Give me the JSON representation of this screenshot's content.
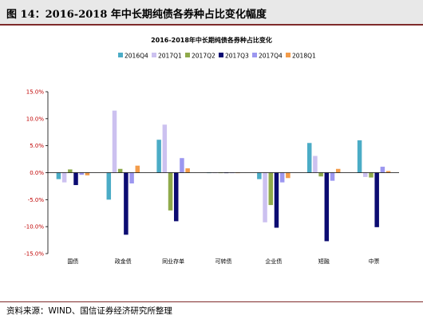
{
  "figure": {
    "title": "图 14：2016-2018 年中长期纯债各券种占比变化幅度",
    "source": "资料来源：WIND、国信证券经济研究所整理"
  },
  "chart_data": {
    "type": "bar",
    "title": "2016-2018年中长期纯债各券种占比变化",
    "xlabel": "",
    "ylabel": "",
    "categories": [
      "国债",
      "政金债",
      "同业存单",
      "可转债",
      "企业债",
      "短融",
      "中票"
    ],
    "ylim": [
      -15,
      15
    ],
    "yticks": [
      15,
      10,
      5,
      0,
      -5,
      -10,
      -15
    ],
    "ytick_labels": [
      "15.0%",
      "10.0%",
      "5.0%",
      "0.0%",
      "-5.0%",
      "-10.0%",
      "-15.0%"
    ],
    "grid": false,
    "legend_position": "top",
    "series": [
      {
        "name": "2016Q4",
        "color": "#4bacc6",
        "values": [
          -1.2,
          -5.0,
          6.1,
          0.0,
          -1.2,
          5.5,
          6.0
        ]
      },
      {
        "name": "2017Q1",
        "color": "#ccc1f0",
        "values": [
          -1.8,
          11.5,
          8.9,
          0.0,
          -9.2,
          3.1,
          -0.8
        ]
      },
      {
        "name": "2017Q2",
        "color": "#8faa4a",
        "values": [
          0.6,
          0.7,
          -7.0,
          0.0,
          -6.0,
          -0.7,
          -0.9
        ]
      },
      {
        "name": "2017Q3",
        "color": "#0c0c72",
        "values": [
          -2.3,
          -11.5,
          -9.0,
          0.0,
          -10.2,
          -12.7,
          -10.1
        ]
      },
      {
        "name": "2017Q4",
        "color": "#9c97f0",
        "values": [
          -0.4,
          -2.0,
          2.7,
          0.0,
          -1.8,
          -1.5,
          1.1
        ]
      },
      {
        "name": "2018Q1",
        "color": "#f39c4a",
        "values": [
          -0.5,
          1.3,
          0.8,
          0.0,
          -1.0,
          0.7,
          0.3
        ]
      }
    ]
  }
}
